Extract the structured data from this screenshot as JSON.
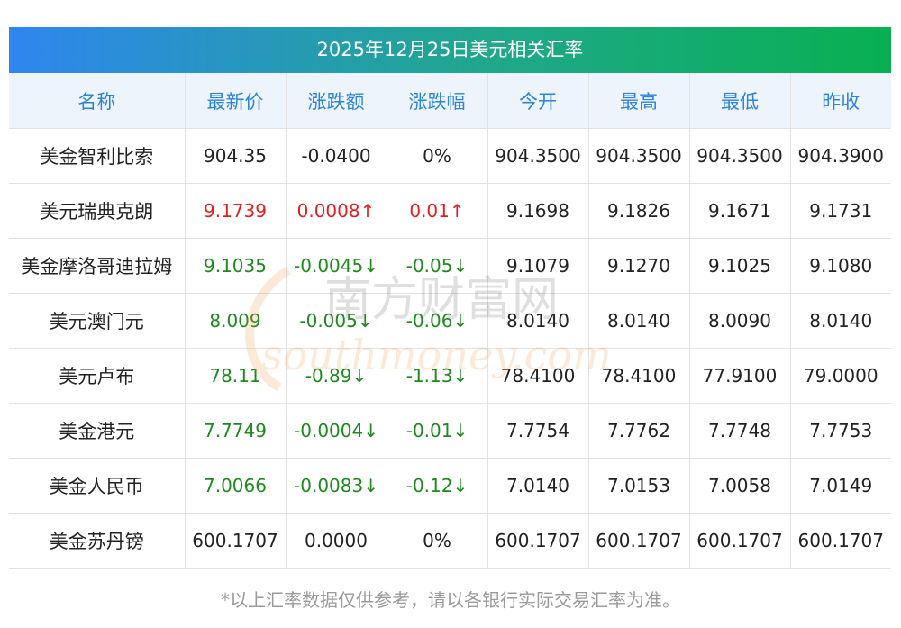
{
  "title": "2025年12月25日美元相关汇率",
  "columns": [
    "名称",
    "最新价",
    "涨跌额",
    "涨跌幅",
    "今开",
    "最高",
    "最低",
    "昨收"
  ],
  "rows": [
    {
      "name": "美金智利比索",
      "latest": "904.35",
      "change": "-0.0400",
      "pct": "0%",
      "open": "904.3500",
      "high": "904.3500",
      "low": "904.3500",
      "prev": "904.3900",
      "trend": "flat"
    },
    {
      "name": "美元瑞典克朗",
      "latest": "9.1739",
      "change": "0.0008↑",
      "pct": "0.01↑",
      "open": "9.1698",
      "high": "9.1826",
      "low": "9.1671",
      "prev": "9.1731",
      "trend": "up"
    },
    {
      "name": "美金摩洛哥迪拉姆",
      "latest": "9.1035",
      "change": "-0.0045↓",
      "pct": "-0.05↓",
      "open": "9.1079",
      "high": "9.1270",
      "low": "9.1025",
      "prev": "9.1080",
      "trend": "down"
    },
    {
      "name": "美元澳门元",
      "latest": "8.009",
      "change": "-0.005↓",
      "pct": "-0.06↓",
      "open": "8.0140",
      "high": "8.0140",
      "low": "8.0090",
      "prev": "8.0140",
      "trend": "down"
    },
    {
      "name": "美元卢布",
      "latest": "78.11",
      "change": "-0.89↓",
      "pct": "-1.13↓",
      "open": "78.4100",
      "high": "78.4100",
      "low": "77.9100",
      "prev": "79.0000",
      "trend": "down"
    },
    {
      "name": "美金港元",
      "latest": "7.7749",
      "change": "-0.0004↓",
      "pct": "-0.01↓",
      "open": "7.7754",
      "high": "7.7762",
      "low": "7.7748",
      "prev": "7.7753",
      "trend": "down"
    },
    {
      "name": "美金人民币",
      "latest": "7.0066",
      "change": "-0.0083↓",
      "pct": "-0.12↓",
      "open": "7.0140",
      "high": "7.0153",
      "low": "7.0058",
      "prev": "7.0149",
      "trend": "down"
    },
    {
      "name": "美金苏丹镑",
      "latest": "600.1707",
      "change": "0.0000",
      "pct": "0%",
      "open": "600.1707",
      "high": "600.1707",
      "low": "600.1707",
      "prev": "600.1707",
      "trend": "flat"
    }
  ],
  "footnote": "*以上汇率数据仅供参考，请以各银行实际交易汇率为准。",
  "watermark": {
    "cn": "南方财富网",
    "en": "southmoney.com"
  },
  "colors": {
    "up": "#e02020",
    "down": "#1e8a1e",
    "header_text": "#2c83dd",
    "title_start": "#2f86f0",
    "title_end": "#08b051"
  }
}
